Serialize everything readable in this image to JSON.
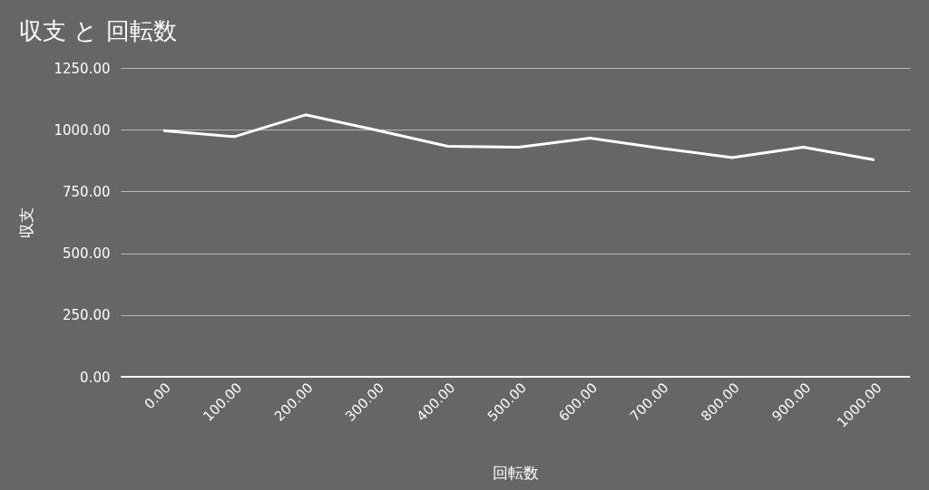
{
  "chart_data": {
    "type": "line",
    "title": "収支 と 回転数",
    "xlabel": "回転数",
    "ylabel": "収支",
    "x": [
      0,
      100,
      200,
      300,
      400,
      500,
      600,
      700,
      800,
      900,
      1000
    ],
    "series": [
      {
        "color": "#ffffff",
        "values": [
          996,
          972,
          1060,
          998,
          933,
          929,
          966,
          925,
          887,
          929,
          878
        ]
      }
    ],
    "xlim": [
      -60,
      1050
    ],
    "xticks": [
      {
        "value": 0,
        "label": "0.00"
      },
      {
        "value": 100,
        "label": "100.00"
      },
      {
        "value": 200,
        "label": "200.00"
      },
      {
        "value": 300,
        "label": "300.00"
      },
      {
        "value": 400,
        "label": "400.00"
      },
      {
        "value": 500,
        "label": "500.00"
      },
      {
        "value": 600,
        "label": "600.00"
      },
      {
        "value": 700,
        "label": "700.00"
      },
      {
        "value": 800,
        "label": "800.00"
      },
      {
        "value": 900,
        "label": "900.00"
      },
      {
        "value": 1000,
        "label": "1000.00"
      }
    ],
    "ylim": [
      0,
      1250
    ],
    "yticks": [
      {
        "value": 0,
        "label": "0.00"
      },
      {
        "value": 250,
        "label": "250.00"
      },
      {
        "value": 500,
        "label": "500.00"
      },
      {
        "value": 750,
        "label": "750.00"
      },
      {
        "value": 1000,
        "label": "1000.00"
      },
      {
        "value": 1250,
        "label": "1250.00"
      }
    ],
    "grid": "y",
    "legend": false,
    "marker": "none",
    "line_style": "solid"
  }
}
